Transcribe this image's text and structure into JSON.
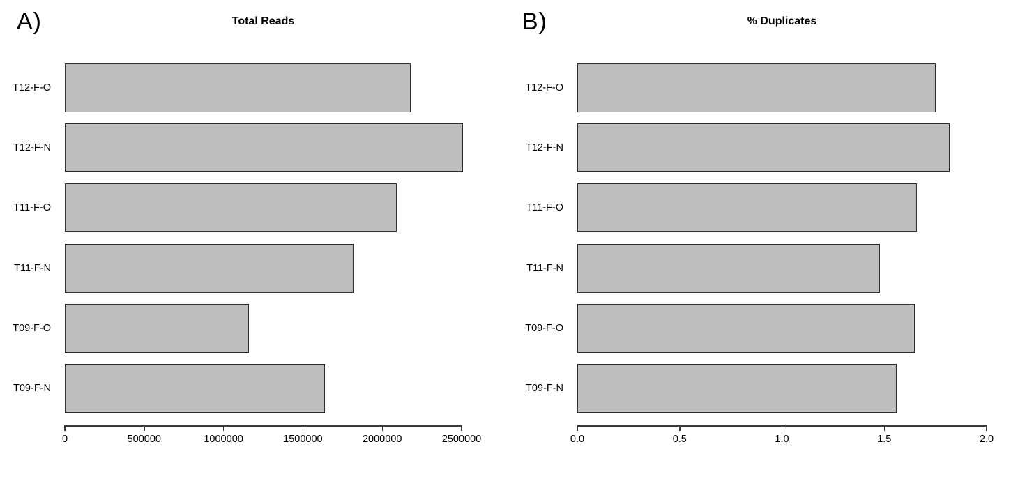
{
  "page": {
    "background": "#ffffff"
  },
  "colors": {
    "bar_fill": "#bebebe",
    "bar_border": "#2e2e2e",
    "axis": "#3a3a3a",
    "text": "#000000"
  },
  "chart_data": [
    {
      "type": "bar",
      "orientation": "horizontal",
      "panel_label": "A)",
      "title": "Total Reads",
      "categories": [
        "T12-F-O",
        "T12-F-N",
        "T11-F-O",
        "T11-F-N",
        "T09-F-O",
        "T09-F-N"
      ],
      "category_order": "top-to-bottom",
      "values": [
        2180000,
        2510000,
        2090000,
        1820000,
        1160000,
        1640000
      ],
      "xlabel": "",
      "ylabel": "",
      "xlim": [
        0,
        2500000
      ],
      "xticks": [
        0,
        500000,
        1000000,
        1500000,
        2000000,
        2500000
      ],
      "xtick_labels": [
        "0",
        "500000",
        "1000000",
        "1500000",
        "2000000",
        "2500000"
      ],
      "grid": false,
      "legend": false
    },
    {
      "type": "bar",
      "orientation": "horizontal",
      "panel_label": "B)",
      "title": "% Duplicates",
      "categories": [
        "T12-F-O",
        "T12-F-N",
        "T11-F-O",
        "T11-F-N",
        "T09-F-O",
        "T09-F-N"
      ],
      "category_order": "top-to-bottom",
      "values": [
        1.75,
        1.82,
        1.66,
        1.48,
        1.65,
        1.56
      ],
      "xlabel": "",
      "ylabel": "",
      "xlim": [
        0,
        2.0
      ],
      "xticks": [
        0.0,
        0.5,
        1.0,
        1.5,
        2.0
      ],
      "xtick_labels": [
        "0.0",
        "0.5",
        "1.0",
        "1.5",
        "2.0"
      ],
      "grid": false,
      "legend": false
    }
  ]
}
